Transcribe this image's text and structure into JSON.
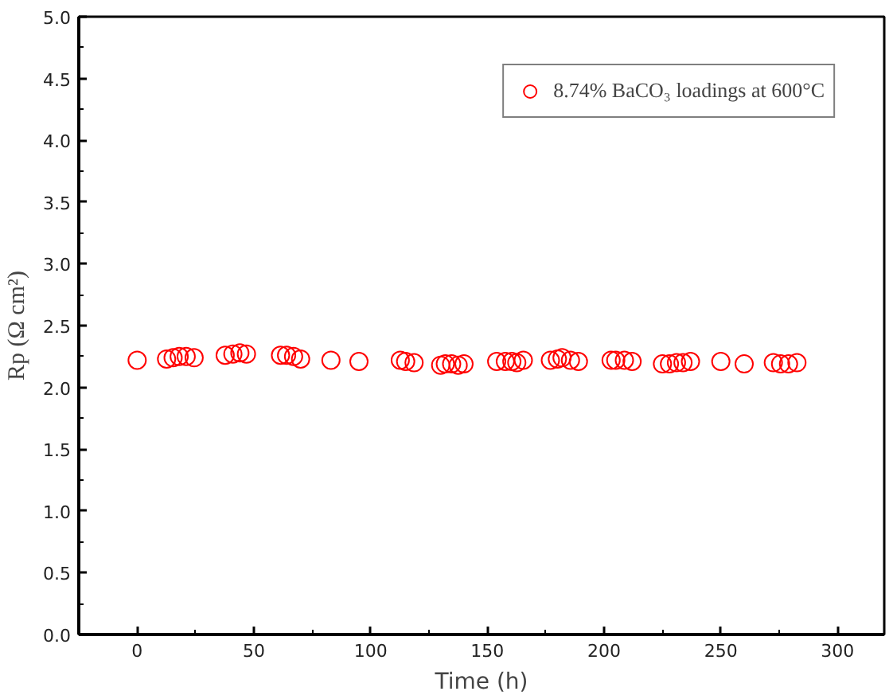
{
  "chart_data": {
    "type": "scatter",
    "xlabel": "Time (h)",
    "ylabel": "Rp (Ω cm²)",
    "xlim": [
      -25,
      320
    ],
    "xticks": [
      0,
      50,
      100,
      150,
      200,
      250,
      300
    ],
    "ylim": [
      0,
      5
    ],
    "yticks": [
      {
        "value": 0,
        "label": "0.0"
      },
      {
        "value": 0.5,
        "label": "0.5"
      },
      {
        "value": 1,
        "label": "1.0"
      },
      {
        "value": 1.5,
        "label": "1.5"
      },
      {
        "value": 2,
        "label": "2.0"
      },
      {
        "value": 2.5,
        "label": "2.5"
      },
      {
        "value": 3,
        "label": "3.0"
      },
      {
        "value": 3.5,
        "label": "3.5"
      },
      {
        "value": 4,
        "label": "4.0"
      },
      {
        "value": 4.5,
        "label": "4.5"
      },
      {
        "value": 5,
        "label": "5.0"
      }
    ],
    "grid": false,
    "legend": "top right",
    "marker": "circle",
    "series": [
      {
        "name": "8.74% BaCO₃ loadings at 600°C",
        "color": "#ff0000",
        "x": [
          0,
          12.6,
          15.4,
          18,
          21,
          24.4,
          37.7,
          41,
          44,
          46.8,
          61.4,
          64,
          67,
          70,
          83,
          95,
          112.7,
          115,
          118.6,
          130,
          132,
          134.7,
          137.5,
          140,
          154,
          157.7,
          160.5,
          162.6,
          165.4,
          177,
          180,
          182,
          185.6,
          189,
          203,
          205,
          208.7,
          212,
          225,
          228,
          231,
          233.8,
          237,
          250,
          260,
          272.5,
          275.6,
          279,
          282.6
        ],
        "values": [
          2.22,
          2.23,
          2.24,
          2.25,
          2.25,
          2.24,
          2.26,
          2.27,
          2.28,
          2.27,
          2.26,
          2.26,
          2.25,
          2.23,
          2.22,
          2.21,
          2.22,
          2.21,
          2.2,
          2.18,
          2.19,
          2.19,
          2.18,
          2.19,
          2.21,
          2.21,
          2.21,
          2.2,
          2.22,
          2.22,
          2.23,
          2.24,
          2.22,
          2.21,
          2.22,
          2.22,
          2.22,
          2.21,
          2.19,
          2.19,
          2.2,
          2.2,
          2.21,
          2.21,
          2.19,
          2.2,
          2.19,
          2.19,
          2.2
        ]
      }
    ]
  }
}
